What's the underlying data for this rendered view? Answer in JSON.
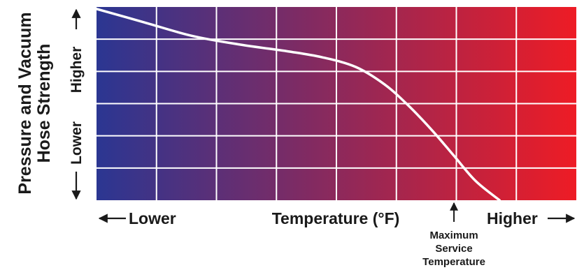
{
  "chart_data": {
    "type": "line",
    "title": "",
    "ylabel_line1": "Pressure and Vacuum",
    "ylabel_line2": "Hose Strength",
    "y_lower_label": "Lower",
    "y_higher_label": "Higher",
    "xlabel": "Temperature (°F)",
    "x_lower_label": "Lower",
    "x_higher_label": "Higher",
    "annotation_lines": [
      "Maximum",
      "Service",
      "Temperature"
    ],
    "annotation_x": 0.745,
    "xlim": [
      0,
      1
    ],
    "ylim": [
      0,
      1
    ],
    "grid": true,
    "grid_cols": 8,
    "grid_rows": 6,
    "gradient": {
      "from": "#2b3692",
      "to": "#ee1c25"
    },
    "curve_color": "#ffffff",
    "series": [
      {
        "x": [
          0.0,
          0.1,
          0.2,
          0.3,
          0.4,
          0.47,
          0.54,
          0.6,
          0.65,
          0.7,
          0.745,
          0.79,
          0.84
        ],
        "y": [
          0.99,
          0.92,
          0.85,
          0.805,
          0.77,
          0.74,
          0.69,
          0.6,
          0.49,
          0.36,
          0.23,
          0.1,
          0.0
        ]
      }
    ]
  }
}
